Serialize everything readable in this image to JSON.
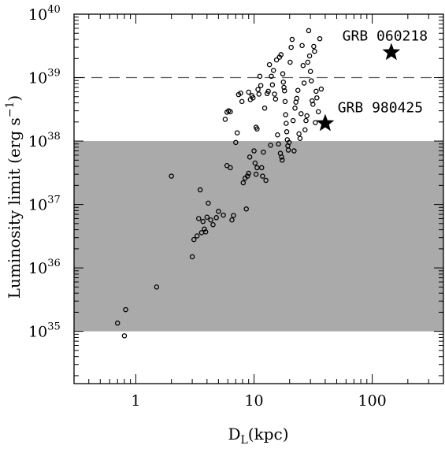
{
  "chart_data": {
    "type": "scatter",
    "title": "",
    "xlabel": "D",
    "xlabel_sub": "L",
    "xlabel_unit": "(kpc)",
    "ylabel": "Luminosity limit (erg s",
    "ylabel_sup": "−1",
    "ylabel_close": ")",
    "xscale": "log",
    "yscale": "log",
    "xlim": [
      0.3,
      400
    ],
    "ylim": [
      1.5e+34,
      1e+40
    ],
    "grid": false,
    "legend": "none",
    "xticks": [
      {
        "value": 1,
        "label": "1"
      },
      {
        "value": 10,
        "label": "10"
      },
      {
        "value": 100,
        "label": "100"
      }
    ],
    "yticks": [
      {
        "value": 1e+35,
        "base": "10",
        "exp": "35"
      },
      {
        "value": 1e+36,
        "base": "10",
        "exp": "36"
      },
      {
        "value": 1e+37,
        "base": "10",
        "exp": "37"
      },
      {
        "value": 1e+38,
        "base": "10",
        "exp": "38"
      },
      {
        "value": 1e+39,
        "base": "10",
        "exp": "39"
      },
      {
        "value": 1e+40,
        "base": "10",
        "exp": "40"
      }
    ],
    "shaded_band": {
      "y_min": 1e+35,
      "y_max": 1e+38,
      "color": "#aaaaaa"
    },
    "reference_line": {
      "y": 1e+39,
      "style": "dashed",
      "color": "#555555"
    },
    "highlighted": [
      {
        "name": "GRB 060218",
        "x": 145,
        "y": 2.5e+39,
        "marker": "star"
      },
      {
        "name": "GRB 980425",
        "x": 40,
        "y": 1.9e+38,
        "marker": "star"
      }
    ],
    "series": [
      {
        "marker": "open-circle",
        "points": [
          [
            0.7,
            1.35e+35
          ],
          [
            0.82,
            2.2e+35
          ],
          [
            0.8,
            8.5e+34
          ],
          [
            1.5,
            5e+35
          ],
          [
            2.0,
            2.8e+37
          ],
          [
            3.0,
            1.5e+36
          ],
          [
            3.1,
            2.8e+36
          ],
          [
            3.3,
            3.2e+36
          ],
          [
            3.4,
            6e+36
          ],
          [
            3.5,
            1.7e+37
          ],
          [
            3.6,
            3.6e+36
          ],
          [
            3.7,
            5.4e+36
          ],
          [
            3.8,
            4.1e+36
          ],
          [
            3.9,
            3.7e+36
          ],
          [
            4.0,
            6.3e+36
          ],
          [
            4.1,
            1.05e+37
          ],
          [
            4.3,
            5.7e+36
          ],
          [
            4.5,
            4.8e+36
          ],
          [
            4.8,
            6.2e+36
          ],
          [
            5.0,
            7.8e+36
          ],
          [
            5.5,
            6.8e+36
          ],
          [
            5.7,
            2.2e+38
          ],
          [
            5.9,
            2.85e+38
          ],
          [
            6.1,
            3e+38
          ],
          [
            6.3,
            2.9e+38
          ],
          [
            5.9,
            4.1e+37
          ],
          [
            6.3,
            3.8e+37
          ],
          [
            6.5,
            5.7e+36
          ],
          [
            6.7,
            6.7e+36
          ],
          [
            7.0,
            9.5e+37
          ],
          [
            7.2,
            1.35e+38
          ],
          [
            7.4,
            5.4e+38
          ],
          [
            7.7,
            5.7e+38
          ],
          [
            7.9,
            4.2e+38
          ],
          [
            8.1,
            2.2e+37
          ],
          [
            8.4,
            2.6e+37
          ],
          [
            8.6,
            8.5e+36
          ],
          [
            8.8,
            2.8e+37
          ],
          [
            9.0,
            3.1e+37
          ],
          [
            9.2,
            5.6e+37
          ],
          [
            9.0,
            5.9e+38
          ],
          [
            9.3,
            4.5e+38
          ],
          [
            9.6,
            5.2e+38
          ],
          [
            9.8,
            4.8e+38
          ],
          [
            10.0,
            7e+37
          ],
          [
            10.2,
            4.5e+37
          ],
          [
            10.4,
            3e+37
          ],
          [
            10.6,
            3.8e+37
          ],
          [
            10.4,
            1.65e+38
          ],
          [
            10.6,
            1.55e+38
          ],
          [
            10.8,
            6.5e+38
          ],
          [
            11.0,
            5.5e+38
          ],
          [
            11.2,
            1.05e+39
          ],
          [
            11.4,
            7.5e+38
          ],
          [
            11.6,
            3.8e+37
          ],
          [
            11.8,
            2.8e+37
          ],
          [
            12.0,
            6.7e+37
          ],
          [
            12.3,
            3.3e+38
          ],
          [
            12.6,
            2.4e+37
          ],
          [
            12.9,
            5.6e+38
          ],
          [
            13.2,
            6.1e+38
          ],
          [
            13.5,
            1.6e+39
          ],
          [
            13.8,
            8.6e+37
          ],
          [
            14.0,
            1.05e+39
          ],
          [
            14.3,
            7.7e+38
          ],
          [
            14.6,
            1.3e+39
          ],
          [
            14.9,
            5.5e+38
          ],
          [
            15.2,
            4.6e+38
          ],
          [
            15.5,
            1.9e+39
          ],
          [
            15.8,
            1.25e+38
          ],
          [
            16.1,
            9e+37
          ],
          [
            16.4,
            2.1e+39
          ],
          [
            16.7,
            6.4e+37
          ],
          [
            16.9,
            2.3e+39
          ],
          [
            17.1,
            5.6e+37
          ],
          [
            17.3,
            5e+37
          ],
          [
            17.5,
            1.15e+39
          ],
          [
            17.7,
            8.5e+38
          ],
          [
            17.9,
            7e+38
          ],
          [
            18.1,
            6.2e+38
          ],
          [
            18.3,
            4.2e+38
          ],
          [
            18.5,
            2.6e+38
          ],
          [
            18.7,
            1.9e+38
          ],
          [
            18.9,
            1.4e+38
          ],
          [
            19.1,
            1.05e+38
          ],
          [
            19.3,
            8.4e+37
          ],
          [
            19.5,
            7.2e+37
          ],
          [
            19.8,
            9.5e+37
          ],
          [
            20.2,
            1.75e+39
          ],
          [
            20.6,
            3e+39
          ],
          [
            21.0,
            4e+39
          ],
          [
            21.4,
            2.1e+38
          ],
          [
            21.8,
            7e+37
          ],
          [
            22.2,
            3.3e+38
          ],
          [
            22.6,
            4.1e+38
          ],
          [
            23.0,
            4.7e+38
          ],
          [
            23.5,
            6.3e+38
          ],
          [
            24.0,
            1.3e+38
          ],
          [
            24.5,
            1.1e+38
          ],
          [
            25.0,
            2.7e+38
          ],
          [
            25.5,
            3.2e+39
          ],
          [
            26.0,
            1.55e+39
          ],
          [
            26.5,
            8.2e+38
          ],
          [
            27.0,
            1.5e+38
          ],
          [
            27.5,
            2.1e+38
          ],
          [
            28.0,
            2.5e+38
          ],
          [
            28.5,
            1.75e+39
          ],
          [
            29.0,
            5.5e+39
          ],
          [
            29.5,
            2.2e+39
          ],
          [
            30.0,
            1.25e+39
          ],
          [
            30.5,
            8.9e+38
          ],
          [
            31.0,
            4.3e+38
          ],
          [
            31.5,
            3.8e+38
          ],
          [
            32.0,
            3.1e+39
          ],
          [
            32.5,
            2.6e+39
          ],
          [
            33.0,
            1.95e+38
          ],
          [
            33.5,
            6.1e+38
          ],
          [
            34.0,
            4.8e+38
          ],
          [
            35.0,
            2.9e+38
          ],
          [
            36.0,
            4.1e+39
          ],
          [
            37.0,
            6.6e+38
          ]
        ]
      }
    ]
  }
}
